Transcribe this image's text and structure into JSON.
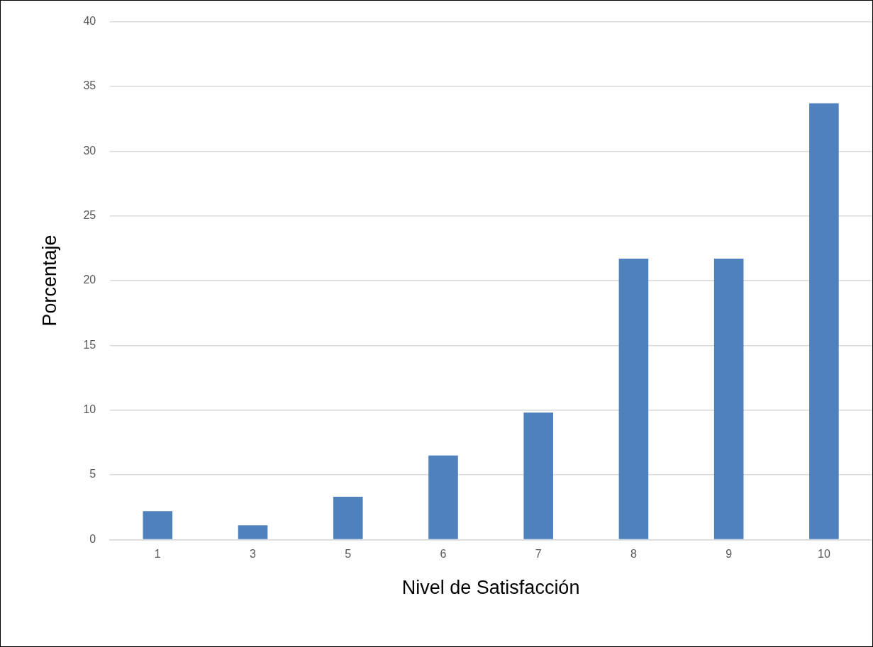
{
  "chart_data": {
    "type": "bar",
    "xlabel": "Nivel de Satisfacción",
    "ylabel": "Porcentaje",
    "categories": [
      "1",
      "3",
      "5",
      "6",
      "7",
      "8",
      "9",
      "10"
    ],
    "values": [
      2.2,
      1.1,
      3.3,
      6.5,
      9.8,
      21.7,
      21.7,
      33.7
    ],
    "color": "#4f81bd",
    "ylim": [
      0,
      40
    ],
    "yticks": [
      0,
      5,
      10,
      15,
      20,
      25,
      30,
      35,
      40
    ],
    "grid": "y",
    "legend": false
  }
}
